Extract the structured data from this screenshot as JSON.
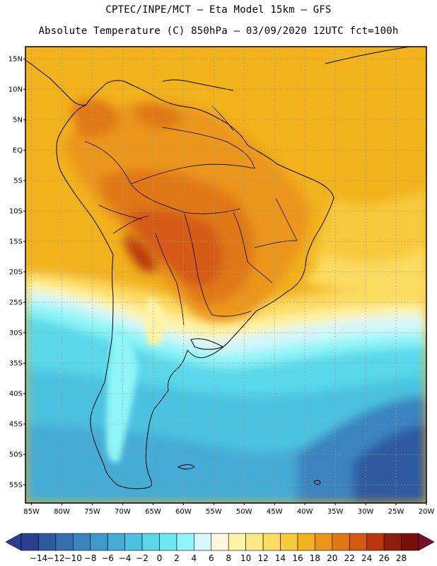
{
  "header": {
    "line1": "CPTEC/INPE/MCT –  Eta Model 15km – GFS",
    "line2": "Absolute Temperature (C) 850hPa – 03/09/2020 12UTC fct=100h"
  },
  "map": {
    "lat_labels": [
      "15N",
      "10N",
      "5N",
      "EQ",
      "5S",
      "10S",
      "15S",
      "20S",
      "25S",
      "30S",
      "35S",
      "40S",
      "45S",
      "50S",
      "55S"
    ],
    "lat_values": [
      15,
      10,
      5,
      0,
      -5,
      -10,
      -15,
      -20,
      -25,
      -30,
      -35,
      -40,
      -45,
      -50,
      -55
    ],
    "lon_labels": [
      "85W",
      "80W",
      "75W",
      "70W",
      "65W",
      "60W",
      "55W",
      "50W",
      "45W",
      "40W",
      "35W",
      "30W",
      "25W",
      "20W"
    ],
    "lon_values": [
      -85,
      -80,
      -75,
      -70,
      -65,
      -60,
      -55,
      -50,
      -45,
      -40,
      -35,
      -30,
      -25,
      -20
    ],
    "lon_range": [
      -86,
      -20
    ],
    "lat_range": [
      -58,
      17
    ]
  },
  "colorbar": {
    "labels": [
      "-14",
      "-12",
      "-10",
      "-8",
      "-6",
      "-4",
      "-2",
      "0",
      "2",
      "4",
      "6",
      "8",
      "10",
      "12",
      "14",
      "16",
      "18",
      "20",
      "22",
      "24",
      "26",
      "28"
    ],
    "colors": [
      "#2a3f8f",
      "#2f5aa0",
      "#3470b0",
      "#3a84bf",
      "#3f99cb",
      "#44acd6",
      "#4cc2e0",
      "#5ad8ea",
      "#6ee8f0",
      "#8ff5f7",
      "#d6f7fb",
      "#fff7e0",
      "#fff3a6",
      "#fdea86",
      "#fbdb60",
      "#f7c93d",
      "#f2b21c",
      "#eb961a",
      "#e07816",
      "#d45a12",
      "#b9380e",
      "#8c1e0a",
      "#7a0f08"
    ]
  }
}
